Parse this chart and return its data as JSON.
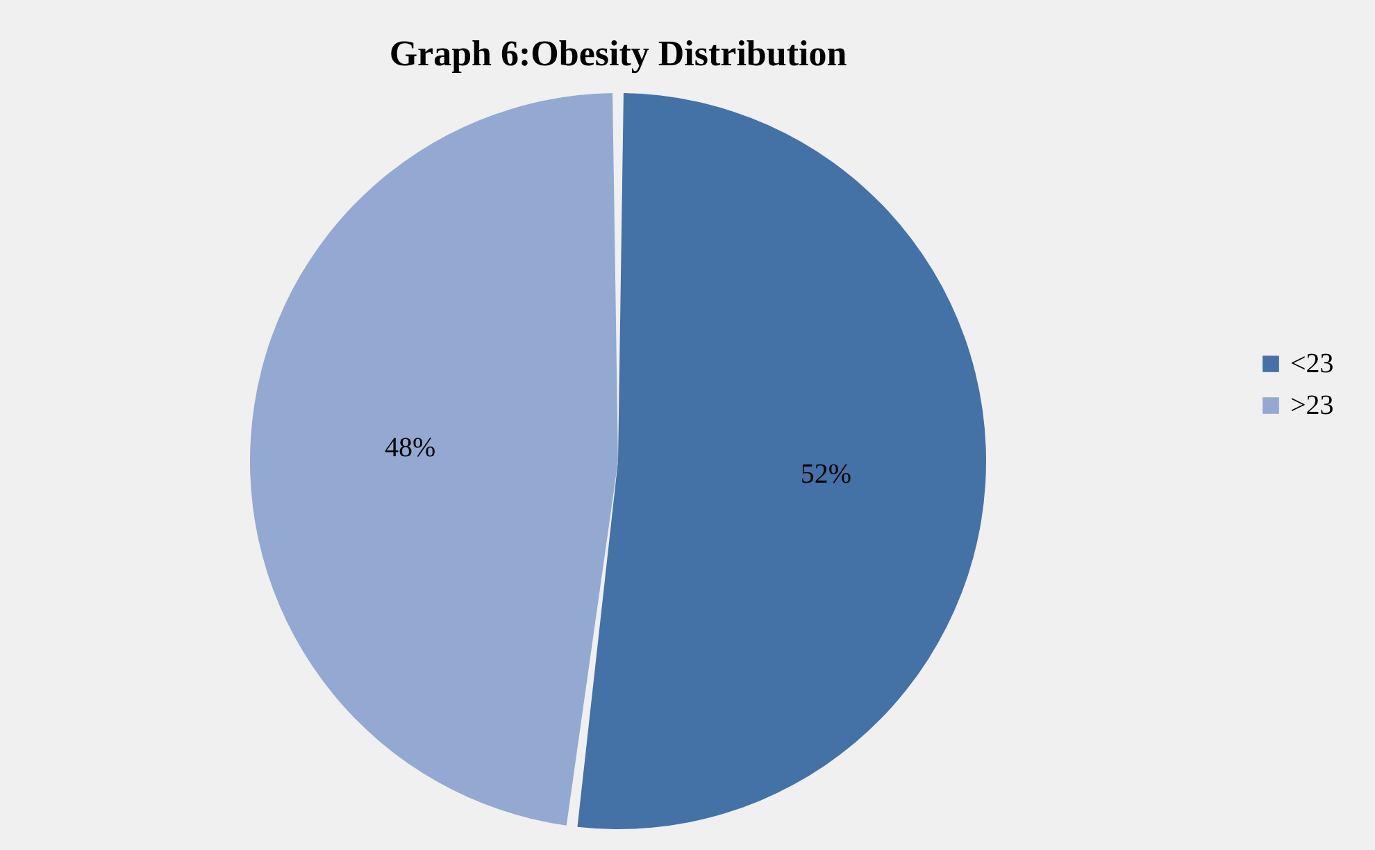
{
  "chart_data": {
    "type": "pie",
    "title": "Graph 6:Obesity Distribution",
    "categories": [
      "<23",
      ">23"
    ],
    "values": [
      52,
      48
    ],
    "colors": [
      "#4471a6",
      "#93a9d1"
    ],
    "value_labels": [
      "52%",
      "48%"
    ],
    "legend": "right"
  }
}
